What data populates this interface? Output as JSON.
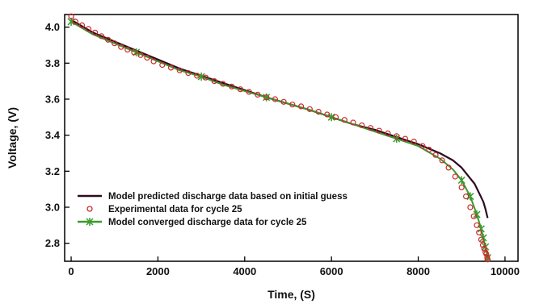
{
  "chart_data": {
    "type": "line",
    "title": "",
    "xlabel": "Time, (S)",
    "ylabel": "Voltage, (V)",
    "xlim": [
      -150,
      10300
    ],
    "ylim": [
      2.7,
      4.07
    ],
    "xticks": [
      0,
      2000,
      4000,
      6000,
      8000,
      10000
    ],
    "xtick_labels": [
      "0",
      "2000",
      "4000",
      "6000",
      "8000",
      "10000"
    ],
    "yticks": [
      2.8,
      3.0,
      3.2,
      3.4,
      3.6,
      3.8,
      4.0
    ],
    "ytick_labels": [
      "2.8",
      "3.0",
      "3.2",
      "3.4",
      "3.6",
      "3.8",
      "4.0"
    ],
    "grid": false,
    "legend_position": "lower-left",
    "series": [
      {
        "name": "Model predicted discharge data based on initial guess",
        "style": "line",
        "color": "#2d0b22",
        "x": [
          0,
          500,
          1000,
          1500,
          2000,
          2500,
          3000,
          3500,
          4000,
          4500,
          5000,
          5500,
          6000,
          6500,
          7000,
          7500,
          8000,
          8500,
          8800,
          9000,
          9200,
          9300,
          9400,
          9500,
          9550,
          9600
        ],
        "y": [
          4.04,
          3.97,
          3.92,
          3.87,
          3.82,
          3.77,
          3.73,
          3.69,
          3.65,
          3.61,
          3.575,
          3.54,
          3.5,
          3.46,
          3.43,
          3.39,
          3.35,
          3.3,
          3.26,
          3.22,
          3.16,
          3.13,
          3.08,
          3.03,
          2.99,
          2.94
        ]
      },
      {
        "name": "Experimental data for cycle 25",
        "style": "markers",
        "color": "#cc2a2a",
        "x": [
          0,
          100,
          250,
          400,
          550,
          700,
          850,
          1000,
          1150,
          1300,
          1450,
          1600,
          1750,
          1900,
          2100,
          2300,
          2500,
          2700,
          2900,
          3100,
          3300,
          3500,
          3700,
          3900,
          4100,
          4300,
          4500,
          4700,
          4900,
          5100,
          5300,
          5500,
          5700,
          5900,
          6100,
          6300,
          6500,
          6700,
          6900,
          7100,
          7300,
          7500,
          7700,
          7900,
          8100,
          8250,
          8400,
          8550,
          8700,
          8850,
          9000,
          9100,
          9200,
          9280,
          9350,
          9400,
          9450,
          9490,
          9520,
          9550,
          9570,
          9590,
          9600
        ],
        "y": [
          4.06,
          4.03,
          4.01,
          3.99,
          3.97,
          3.95,
          3.93,
          3.91,
          3.89,
          3.875,
          3.86,
          3.845,
          3.83,
          3.81,
          3.79,
          3.775,
          3.76,
          3.745,
          3.73,
          3.72,
          3.7,
          3.685,
          3.67,
          3.655,
          3.64,
          3.625,
          3.61,
          3.6,
          3.585,
          3.57,
          3.56,
          3.545,
          3.53,
          3.515,
          3.5,
          3.485,
          3.47,
          3.455,
          3.44,
          3.425,
          3.41,
          3.395,
          3.38,
          3.365,
          3.34,
          3.32,
          3.29,
          3.26,
          3.22,
          3.17,
          3.11,
          3.06,
          3.0,
          2.95,
          2.9,
          2.86,
          2.82,
          2.79,
          2.77,
          2.75,
          2.74,
          2.72,
          2.71
        ]
      },
      {
        "name": "Model converged discharge data for cycle 25",
        "style": "line+markers",
        "color": "#3a9a2e",
        "x": [
          0,
          500,
          1000,
          1500,
          2000,
          2500,
          3000,
          3500,
          4000,
          4500,
          5000,
          5500,
          6000,
          6500,
          7000,
          7500,
          8000,
          8500,
          8800,
          9000,
          9200,
          9350,
          9450,
          9500,
          9550,
          9600
        ],
        "y": [
          4.03,
          3.96,
          3.91,
          3.86,
          3.81,
          3.76,
          3.725,
          3.68,
          3.645,
          3.61,
          3.575,
          3.54,
          3.5,
          3.46,
          3.42,
          3.38,
          3.34,
          3.27,
          3.21,
          3.15,
          3.06,
          2.96,
          2.88,
          2.83,
          2.78,
          2.72
        ]
      }
    ]
  },
  "colors": {
    "predicted": "#2d0b22",
    "experimental": "#cc2a2a",
    "converged": "#3a9a2e",
    "axis": "#000000"
  }
}
